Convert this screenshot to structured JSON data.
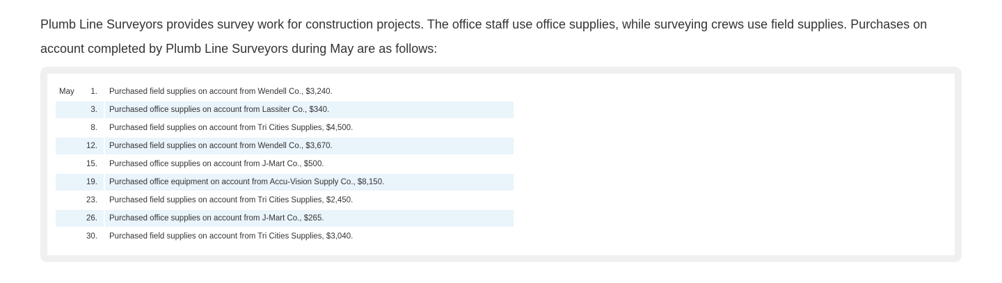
{
  "intro": {
    "text": "Plumb Line Surveyors provides survey work for construction projects. The office staff use office supplies, while surveying crews use field supplies. Purchases on account completed by Plumb Line Surveyors during May are as follows:"
  },
  "transactions": {
    "rows": [
      {
        "month": "May",
        "day": "1.",
        "description": "Purchased field supplies on account from Wendell Co., $3,240."
      },
      {
        "month": "",
        "day": "3.",
        "description": "Purchased office supplies on account from Lassiter Co., $340."
      },
      {
        "month": "",
        "day": "8.",
        "description": "Purchased field supplies on account from Tri Cities Supplies, $4,500."
      },
      {
        "month": "",
        "day": "12.",
        "description": "Purchased field supplies on account from Wendell Co., $3,670."
      },
      {
        "month": "",
        "day": "15.",
        "description": "Purchased office supplies on account from J-Mart Co., $500."
      },
      {
        "month": "",
        "day": "19.",
        "description": "Purchased office equipment on account from Accu-Vision Supply Co., $8,150."
      },
      {
        "month": "",
        "day": "23.",
        "description": "Purchased field supplies on account from Tri Cities Supplies, $2,450."
      },
      {
        "month": "",
        "day": "26.",
        "description": "Purchased office supplies on account from J-Mart Co., $265."
      },
      {
        "month": "",
        "day": "30.",
        "description": "Purchased field supplies on account from Tri Cities Supplies, $3,040."
      }
    ]
  },
  "colors": {
    "text": "#333333",
    "panel_border": "#f0f0f0",
    "row_highlight": "#eaf4fb"
  }
}
